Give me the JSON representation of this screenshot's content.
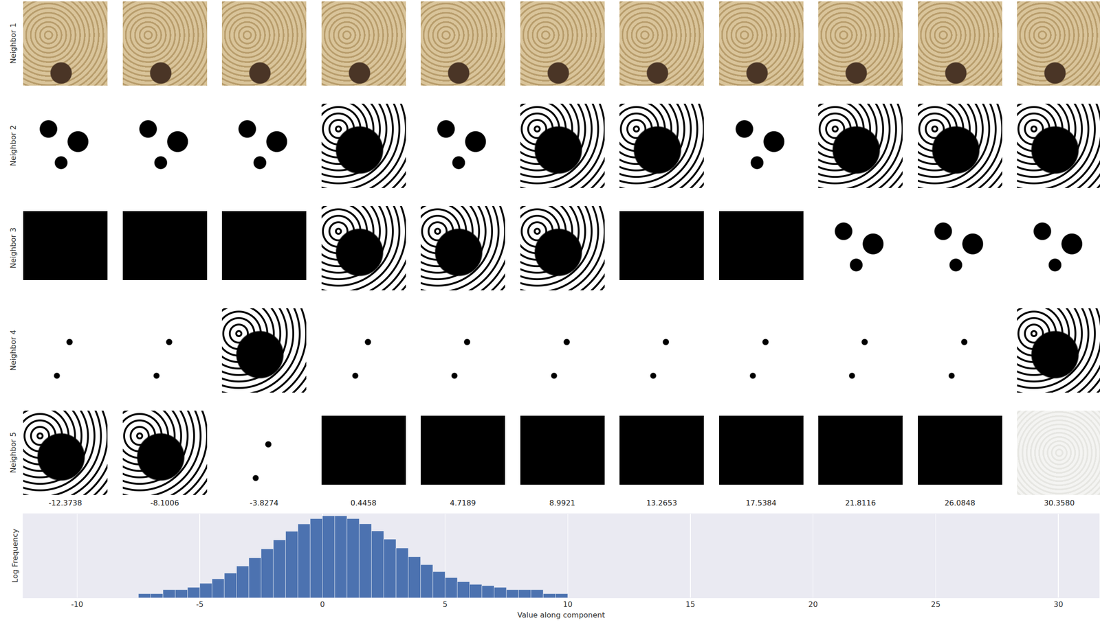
{
  "image_grid": {
    "row_labels": [
      "Neighbor 1",
      "Neighbor 2",
      "Neighbor 3",
      "Neighbor 4",
      "Neighbor 5"
    ],
    "column_values": [
      -12.3738,
      -8.1006,
      -3.8274,
      0.4458,
      4.7189,
      8.9921,
      13.2653,
      17.5384,
      21.8116,
      26.0848,
      {
        "value": 30.358,
        "label": "30.3580"
      }
    ]
  },
  "chart_data": {
    "type": "histogram",
    "x_label": "Value along component",
    "y_label": "Log Frequency",
    "bins": [
      -7.5,
      -7.0,
      -6.5,
      -6.0,
      -5.5,
      -5.0,
      -4.5,
      -4.0,
      -3.5,
      -3.0,
      -2.5,
      -2.0,
      -1.5,
      -1.0,
      -0.5,
      0.0,
      0.5,
      1.0,
      1.5,
      2.0,
      2.5,
      3.0,
      3.5,
      4.0,
      4.5,
      5.0,
      5.5,
      6.0,
      6.5,
      7.0,
      7.5,
      8.0,
      8.5,
      9.0,
      9.5,
      10.0
    ],
    "counts": [
      1,
      1,
      2,
      2,
      3,
      6,
      13,
      35,
      119,
      494,
      2301,
      11100,
      48750,
      173400,
      436500,
      709600,
      712000,
      440000,
      180000,
      52000,
      12500,
      2700,
      600,
      150,
      45,
      16,
      8,
      5,
      4,
      3,
      2,
      2,
      2,
      1,
      1
    ],
    "color": "#4c72b0",
    "xlim": [
      -12.2,
      31.66
    ],
    "xticks": [
      -10,
      -5,
      0,
      5,
      10,
      15,
      20,
      25,
      30
    ],
    "ylim": [
      0.5,
      1000000
    ],
    "log": "y",
    "tick_labels": "x",
    "grid": true
  }
}
